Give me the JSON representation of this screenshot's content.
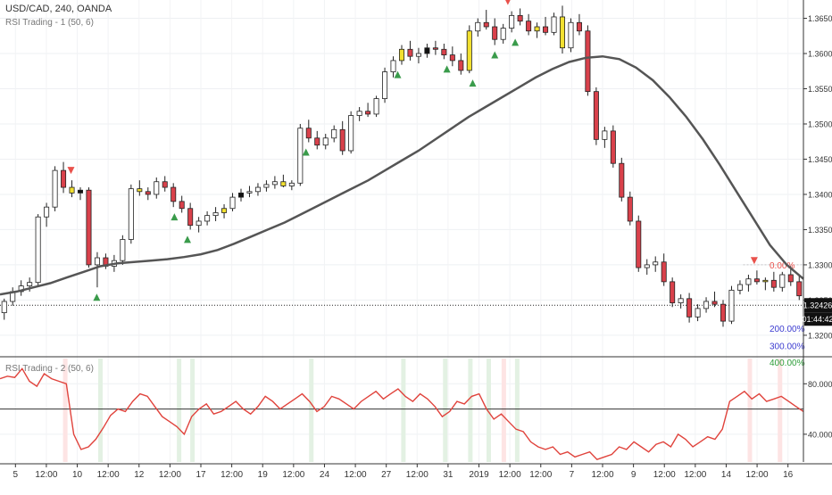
{
  "header": {
    "symbol_line": "USD/CAD, 240, OANDA",
    "indicator_line": "RSI Trading - 1 (50, 6)",
    "sub_indicator_line": "RSI Trading - 2 (50, 6)"
  },
  "price_panel": {
    "price_label": "1.32426",
    "timer_label": "01:44:42",
    "fib_labels": [
      "0.00%",
      "200.00%",
      "300.00%",
      "400.00%"
    ],
    "y_ticks": [
      "1.36500",
      "1.36000",
      "1.35500",
      "1.35000",
      "1.34500",
      "1.34000",
      "1.33500",
      "1.33000",
      "1.32500",
      "1.32000"
    ]
  },
  "rsi_panel": {
    "y_ticks": [
      "80.0000",
      "40.0000"
    ]
  },
  "x_axis": {
    "ticks": [
      "5",
      "12:00",
      "10",
      "12:00",
      "12",
      "12:00",
      "17",
      "12:00",
      "19",
      "12:00",
      "24",
      "12:00",
      "27",
      "12:00",
      "31",
      "2019",
      "12:00",
      "12:00",
      "7",
      "12:00",
      "9",
      "12:00",
      "12:00",
      "14",
      "12:00",
      "16"
    ]
  },
  "colors": {
    "up_candle": "#ffffff",
    "down_candle": "#d9414b",
    "neutral_candle": "#f2e030",
    "black_candle": "#111111",
    "ma_line": "#555555",
    "rsi_line": "#e0433c",
    "buy_arrow": "#3a9b4b",
    "sell_arrow": "#e9514b",
    "bull_band": "#e3f1e3",
    "bear_band": "#fde4e4",
    "fib_zero": "#e9514b",
    "fib_200": "#3c3cd0",
    "fib_300": "#3c3cd0",
    "fib_400": "#2e9e3a"
  },
  "chart_data": [
    {
      "type": "candlestick",
      "title": "USD/CAD, 240, OANDA",
      "ylim": [
        1.3172,
        1.3676
      ],
      "price_line": 1.32426,
      "x_range": [
        0,
        240
      ],
      "candles": [
        [
          1.3232,
          1.3252,
          1.3222,
          1.3248
        ],
        [
          1.3248,
          1.3268,
          1.3242,
          1.3262
        ],
        [
          1.3262,
          1.3278,
          1.3256,
          1.327
        ],
        [
          1.327,
          1.3282,
          1.3262,
          1.3275
        ],
        [
          1.3275,
          1.3372,
          1.327,
          1.3368
        ],
        [
          1.3368,
          1.3388,
          1.3354,
          1.3382
        ],
        [
          1.3382,
          1.344,
          1.3376,
          1.3434
        ],
        [
          1.3434,
          1.3446,
          1.3402,
          1.341
        ],
        [
          1.341,
          1.342,
          1.3396,
          1.3402
        ],
        [
          1.3402,
          1.341,
          1.3392,
          1.3406
        ],
        [
          1.3406,
          1.341,
          1.3296,
          1.33
        ],
        [
          1.33,
          1.3318,
          1.3268,
          1.331
        ],
        [
          1.331,
          1.3316,
          1.3294,
          1.3298
        ],
        [
          1.3298,
          1.3314,
          1.329,
          1.3306
        ],
        [
          1.3306,
          1.3342,
          1.33,
          1.3336
        ],
        [
          1.3336,
          1.3414,
          1.333,
          1.3408
        ],
        [
          1.3408,
          1.342,
          1.3398,
          1.3404
        ],
        [
          1.3404,
          1.341,
          1.3392,
          1.34
        ],
        [
          1.34,
          1.3424,
          1.3394,
          1.3418
        ],
        [
          1.3418,
          1.3426,
          1.3404,
          1.341
        ],
        [
          1.341,
          1.3416,
          1.3382,
          1.339
        ],
        [
          1.339,
          1.3398,
          1.3374,
          1.338
        ],
        [
          1.338,
          1.3388,
          1.335,
          1.3356
        ],
        [
          1.3356,
          1.3368,
          1.3346,
          1.3362
        ],
        [
          1.3362,
          1.3376,
          1.3356,
          1.337
        ],
        [
          1.337,
          1.3382,
          1.3362,
          1.3374
        ],
        [
          1.3374,
          1.3386,
          1.3366,
          1.338
        ],
        [
          1.338,
          1.3402,
          1.3376,
          1.3396
        ],
        [
          1.3396,
          1.3408,
          1.339,
          1.3402
        ],
        [
          1.3402,
          1.3412,
          1.3396,
          1.3404
        ],
        [
          1.3404,
          1.3416,
          1.3398,
          1.341
        ],
        [
          1.341,
          1.342,
          1.3404,
          1.3414
        ],
        [
          1.3414,
          1.3426,
          1.3408,
          1.3418
        ],
        [
          1.3418,
          1.3428,
          1.341,
          1.3412
        ],
        [
          1.3412,
          1.342,
          1.3406,
          1.3416
        ],
        [
          1.3416,
          1.35,
          1.3412,
          1.3494
        ],
        [
          1.3494,
          1.3506,
          1.3474,
          1.348
        ],
        [
          1.348,
          1.349,
          1.3464,
          1.347
        ],
        [
          1.347,
          1.3486,
          1.3464,
          1.348
        ],
        [
          1.348,
          1.3498,
          1.3474,
          1.3492
        ],
        [
          1.3492,
          1.3504,
          1.3456,
          1.3462
        ],
        [
          1.3462,
          1.3518,
          1.3458,
          1.3512
        ],
        [
          1.3512,
          1.3524,
          1.3504,
          1.3518
        ],
        [
          1.3518,
          1.353,
          1.351,
          1.3514
        ],
        [
          1.3514,
          1.354,
          1.351,
          1.3536
        ],
        [
          1.3536,
          1.358,
          1.353,
          1.3574
        ],
        [
          1.3574,
          1.3596,
          1.3566,
          1.359
        ],
        [
          1.359,
          1.3612,
          1.3584,
          1.3606
        ],
        [
          1.3606,
          1.3618,
          1.359,
          1.3596
        ],
        [
          1.3596,
          1.3608,
          1.3586,
          1.36
        ],
        [
          1.36,
          1.3614,
          1.3594,
          1.3608
        ],
        [
          1.3608,
          1.3618,
          1.3598,
          1.3606
        ],
        [
          1.3606,
          1.3614,
          1.3592,
          1.3598
        ],
        [
          1.3598,
          1.361,
          1.3582,
          1.359
        ],
        [
          1.359,
          1.36,
          1.357,
          1.3576
        ],
        [
          1.3576,
          1.364,
          1.3572,
          1.3632
        ],
        [
          1.3632,
          1.365,
          1.3624,
          1.3644
        ],
        [
          1.3644,
          1.3662,
          1.3634,
          1.3638
        ],
        [
          1.3638,
          1.365,
          1.3612,
          1.362
        ],
        [
          1.362,
          1.3642,
          1.3614,
          1.3636
        ],
        [
          1.3636,
          1.366,
          1.363,
          1.3654
        ],
        [
          1.3654,
          1.3664,
          1.364,
          1.3646
        ],
        [
          1.3646,
          1.3656,
          1.3626,
          1.3632
        ],
        [
          1.3632,
          1.3644,
          1.3622,
          1.3638
        ],
        [
          1.3638,
          1.3652,
          1.3626,
          1.363
        ],
        [
          1.363,
          1.3658,
          1.3626,
          1.3652
        ],
        [
          1.3652,
          1.3668,
          1.36,
          1.3608
        ],
        [
          1.3608,
          1.365,
          1.3602,
          1.3644
        ],
        [
          1.3644,
          1.3656,
          1.3626,
          1.3632
        ],
        [
          1.3632,
          1.364,
          1.354,
          1.3546
        ],
        [
          1.3546,
          1.3552,
          1.347,
          1.3478
        ],
        [
          1.3478,
          1.3496,
          1.3466,
          1.349
        ],
        [
          1.349,
          1.3498,
          1.3438,
          1.3444
        ],
        [
          1.3444,
          1.3452,
          1.339,
          1.3396
        ],
        [
          1.3396,
          1.3404,
          1.3356,
          1.3362
        ],
        [
          1.3362,
          1.337,
          1.329,
          1.3296
        ],
        [
          1.3296,
          1.3308,
          1.3286,
          1.33
        ],
        [
          1.33,
          1.3312,
          1.329,
          1.3304
        ],
        [
          1.3304,
          1.3316,
          1.327,
          1.3276
        ],
        [
          1.3276,
          1.3282,
          1.324,
          1.3246
        ],
        [
          1.3246,
          1.3258,
          1.3238,
          1.3252
        ],
        [
          1.3252,
          1.326,
          1.3218,
          1.3226
        ],
        [
          1.3226,
          1.3244,
          1.322,
          1.3238
        ],
        [
          1.3238,
          1.3254,
          1.3232,
          1.3248
        ],
        [
          1.3248,
          1.3262,
          1.324,
          1.3244
        ],
        [
          1.3244,
          1.325,
          1.3212,
          1.322
        ],
        [
          1.322,
          1.327,
          1.3216,
          1.3264
        ],
        [
          1.3264,
          1.3278,
          1.3258,
          1.3272
        ],
        [
          1.3272,
          1.3286,
          1.3262,
          1.328
        ],
        [
          1.328,
          1.3292,
          1.3272,
          1.3276
        ],
        [
          1.3276,
          1.3282,
          1.3264,
          1.3278
        ],
        [
          1.3278,
          1.329,
          1.3262,
          1.3268
        ],
        [
          1.3268,
          1.329,
          1.3262,
          1.3286
        ],
        [
          1.3286,
          1.3298,
          1.327,
          1.3276
        ],
        [
          1.3276,
          1.3284,
          1.325,
          1.3256
        ]
      ],
      "ma_line": [
        1.3258,
        1.3262,
        1.3268,
        1.3274,
        1.3282,
        1.329,
        1.3298,
        1.3302,
        1.3304,
        1.3306,
        1.3308,
        1.3311,
        1.3315,
        1.3321,
        1.333,
        1.334,
        1.335,
        1.336,
        1.3372,
        1.3384,
        1.3396,
        1.3408,
        1.342,
        1.3434,
        1.3448,
        1.3462,
        1.3478,
        1.3494,
        1.351,
        1.3524,
        1.3538,
        1.3552,
        1.3566,
        1.3578,
        1.3588,
        1.3594,
        1.3596,
        1.3592,
        1.358,
        1.3562,
        1.3538,
        1.351,
        1.3478,
        1.3442,
        1.3404,
        1.3366,
        1.3328,
        1.33,
        1.328
      ],
      "arrows": [
        {
          "x": 21.2,
          "dir": "down"
        },
        {
          "x": 28.9,
          "dir": "up"
        },
        {
          "x": 52.1,
          "dir": "up"
        },
        {
          "x": 56.0,
          "dir": "up"
        },
        {
          "x": 91.4,
          "dir": "up"
        },
        {
          "x": 118.8,
          "dir": "up"
        },
        {
          "x": 133.5,
          "dir": "up"
        },
        {
          "x": 141.2,
          "dir": "up"
        },
        {
          "x": 147.8,
          "dir": "up"
        },
        {
          "x": 151.7,
          "dir": "down"
        },
        {
          "x": 153.9,
          "dir": "up"
        },
        {
          "x": 225.3,
          "dir": "down"
        }
      ],
      "fib_levels": [
        {
          "label": "0.00%",
          "value": 1.33
        },
        {
          "label": "200.00%",
          "value": 1.321
        },
        {
          "label": "300.00%",
          "value": 1.3185
        },
        {
          "label": "400.00%",
          "value": 1.3162
        }
      ]
    },
    {
      "type": "line",
      "title": "RSI Trading - 2 (50, 6)",
      "ylim": [
        18,
        100
      ],
      "hline": 60,
      "x_range": [
        0,
        240
      ],
      "values": [
        84,
        86,
        85,
        92,
        82,
        78,
        88,
        84,
        82,
        80,
        40,
        28,
        30,
        36,
        45,
        55,
        60,
        58,
        66,
        72,
        70,
        62,
        54,
        50,
        46,
        40,
        54,
        60,
        64,
        56,
        58,
        62,
        66,
        60,
        56,
        62,
        70,
        66,
        60,
        64,
        68,
        72,
        66,
        58,
        62,
        70,
        68,
        64,
        60,
        66,
        70,
        74,
        68,
        72,
        76,
        70,
        66,
        72,
        68,
        62,
        54,
        58,
        66,
        64,
        70,
        72,
        60,
        52,
        56,
        50,
        44,
        42,
        34,
        30,
        28,
        30,
        24,
        26,
        22,
        24,
        26,
        20,
        22,
        24,
        30,
        28,
        34,
        30,
        26,
        32,
        34,
        30,
        40,
        36,
        30,
        34,
        38,
        36,
        44,
        66,
        70,
        74,
        68,
        72,
        66,
        68,
        70,
        66,
        62,
        58
      ],
      "bands": [
        {
          "x": 19.5,
          "color": "bear"
        },
        {
          "x": 30.0,
          "color": "bull"
        },
        {
          "x": 53.5,
          "color": "bull"
        },
        {
          "x": 57.5,
          "color": "bull"
        },
        {
          "x": 93.0,
          "color": "bull"
        },
        {
          "x": 120.5,
          "color": "bull"
        },
        {
          "x": 133.0,
          "color": "bull"
        },
        {
          "x": 140.5,
          "color": "bull"
        },
        {
          "x": 146.0,
          "color": "bull"
        },
        {
          "x": 150.5,
          "color": "bear"
        },
        {
          "x": 154.5,
          "color": "bull"
        },
        {
          "x": 224.0,
          "color": "bear"
        },
        {
          "x": 233.0,
          "color": "bear"
        }
      ]
    }
  ]
}
